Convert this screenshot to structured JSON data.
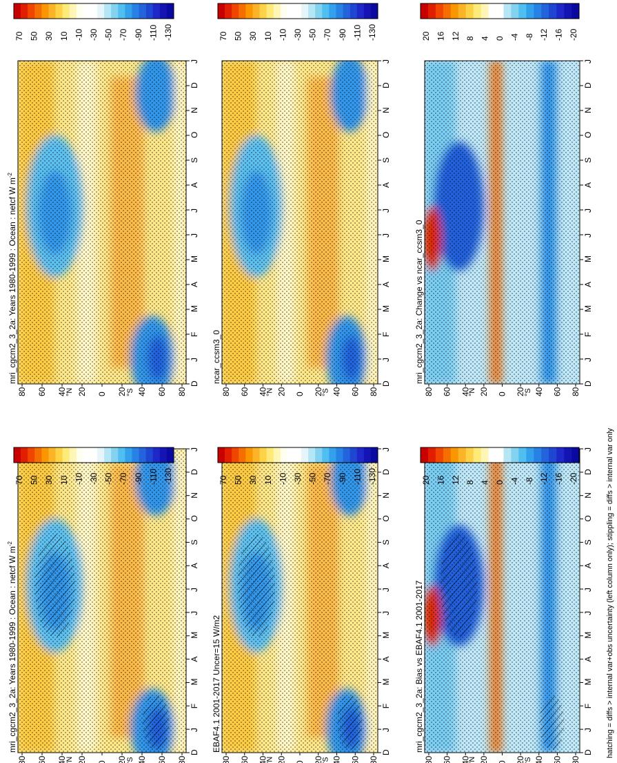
{
  "figure": {
    "footnote": "hatching = diffs > internal var+obs uncertainty (left column only); stippling = diffs > internal var only"
  },
  "colorbars": {
    "absolute": {
      "labels": [
        "70",
        "50",
        "30",
        "10",
        "-10",
        "-30",
        "-50",
        "-70",
        "-90",
        "-110",
        "-130"
      ],
      "colors": [
        "#c80000",
        "#e21e00",
        "#f04600",
        "#f56e00",
        "#f99600",
        "#fbb428",
        "#fdd246",
        "#feea78",
        "#fff5b4",
        "#fffff0",
        "#ffffff",
        "#ffffff",
        "#e6f5fa",
        "#b4e6f5",
        "#82d2f0",
        "#50bef0",
        "#32a0eb",
        "#2882e6",
        "#2364dc",
        "#1e46d2",
        "#1e28c8",
        "#1414b4",
        "#0a0aa0"
      ]
    },
    "difference": {
      "labels": [
        "20",
        "16",
        "12",
        "8",
        "4",
        "0",
        "-4",
        "-8",
        "-12",
        "-16",
        "-20"
      ],
      "colors": [
        "#c80000",
        "#e21e00",
        "#f04600",
        "#f56e00",
        "#f99600",
        "#fbb428",
        "#fdd246",
        "#feea78",
        "#fff5b4",
        "#ffffff",
        "#ffffff",
        "#b4e6f5",
        "#82d2f0",
        "#50bef0",
        "#32a0eb",
        "#2882e6",
        "#2364dc",
        "#1e46d2",
        "#1e28c8",
        "#1414b4",
        "#0a0aa0"
      ]
    }
  },
  "chart_data": [
    {
      "type": "heatmap",
      "panel": "model-left",
      "title": "mri_cgcm2_3_2a: Years 1980-1999 : Ocean : netcf W m",
      "title_sup": "-2",
      "x": [
        "D",
        "J",
        "F",
        "M",
        "A",
        "M",
        "J",
        "J",
        "A",
        "S",
        "O",
        "N",
        "D",
        "J"
      ],
      "y_labels": [
        "80",
        "60",
        "40",
        "20",
        "0",
        "20",
        "40",
        "60",
        "80"
      ],
      "y_units": [
        "°N",
        "°S"
      ],
      "value_range": [
        -130,
        70
      ],
      "features": "strong negative cloud forcing (< -100) at 60°N in Jun-Aug and 60°S in Dec-Feb; positive values (10-40) in subtropics and poles",
      "hatching": true,
      "stippling": true
    },
    {
      "type": "heatmap",
      "panel": "obs",
      "title": "EBAF4.1 2001-2017 Uncer=15 W/m2",
      "x": [
        "D",
        "J",
        "F",
        "M",
        "A",
        "M",
        "J",
        "J",
        "A",
        "S",
        "O",
        "N",
        "D",
        "J"
      ],
      "y_labels": [
        "80",
        "60",
        "40",
        "20",
        "0",
        "20",
        "40",
        "60",
        "80"
      ],
      "y_units": [
        "°N",
        "°S"
      ],
      "value_range": [
        -130,
        70
      ],
      "hatching": true,
      "stippling": true
    },
    {
      "type": "heatmap",
      "panel": "bias",
      "title": "mri_cgcm2_3_2a: Bias vs EBAF4.1 2001-2017",
      "x": [
        "D",
        "J",
        "F",
        "M",
        "A",
        "M",
        "J",
        "J",
        "A",
        "S",
        "O",
        "N",
        "D",
        "J"
      ],
      "y_labels": [
        "80",
        "60",
        "40",
        "20",
        "0",
        "20",
        "40",
        "60",
        "80"
      ],
      "y_units": [
        "°N",
        "°S"
      ],
      "value_range": [
        -20,
        20
      ],
      "hatching": true,
      "stippling": true
    },
    {
      "type": "heatmap",
      "panel": "model-right",
      "title": "mri_cgcm2_3_2a: Years 1980-1999 : Ocean : netcf W m",
      "title_sup": "-2",
      "x": [
        "D",
        "J",
        "F",
        "M",
        "A",
        "M",
        "J",
        "J",
        "A",
        "S",
        "O",
        "N",
        "D",
        "J"
      ],
      "y_labels": [
        "80",
        "60",
        "40",
        "20",
        "0",
        "20",
        "40",
        "60",
        "80"
      ],
      "y_units": [
        "°N",
        "°S"
      ],
      "value_range": [
        -130,
        70
      ],
      "hatching": false,
      "stippling": true
    },
    {
      "type": "heatmap",
      "panel": "ref-model",
      "title": "ncar_ccsm3_0",
      "x": [
        "D",
        "J",
        "F",
        "M",
        "A",
        "M",
        "J",
        "J",
        "A",
        "S",
        "O",
        "N",
        "D",
        "J"
      ],
      "y_labels": [
        "80",
        "60",
        "40",
        "20",
        "0",
        "20",
        "40",
        "60",
        "80"
      ],
      "y_units": [
        "°N",
        "°S"
      ],
      "value_range": [
        -130,
        70
      ],
      "hatching": false,
      "stippling": true
    },
    {
      "type": "heatmap",
      "panel": "change",
      "title": "mri_cgcm2_3_2a: Change vs ncar_ccsm3_0",
      "x": [
        "D",
        "J",
        "F",
        "M",
        "A",
        "M",
        "J",
        "J",
        "A",
        "S",
        "O",
        "N",
        "D",
        "J"
      ],
      "y_labels": [
        "80",
        "60",
        "40",
        "20",
        "0",
        "20",
        "40",
        "60",
        "80"
      ],
      "y_units": [
        "°N",
        "°S"
      ],
      "value_range": [
        -20,
        20
      ],
      "hatching": false,
      "stippling": true
    }
  ]
}
